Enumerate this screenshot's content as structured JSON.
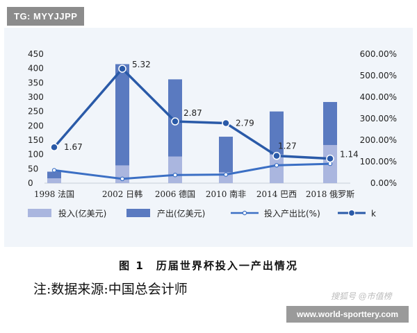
{
  "watermark_top": "TG: MYYJJPP",
  "caption": "图 1　历届世界杯投入一产出情况",
  "note": "注:数据来源:中国总会计师",
  "watermark_mid": "搜狐号 @市值榜",
  "watermark_bottom": "www.world-sporttery.com",
  "colors": {
    "input_bar": "#aab6df",
    "output_bar": "#5a7ac0",
    "ratio_line": "#3b6fc4",
    "k_line": "#2a5aa8",
    "panel_bg": "#f1f5fa",
    "text": "#222222"
  },
  "chart_data": {
    "type": "bar",
    "categories": [
      "1998 法国",
      "2002 日韩",
      "2006 德国",
      "2010 南非",
      "2014 巴西",
      "2018 俄罗斯"
    ],
    "yticks_left": [
      "0",
      "50",
      "100",
      "150",
      "200",
      "250",
      "300",
      "350",
      "400",
      "450"
    ],
    "ylim_left": [
      0,
      450
    ],
    "yticks_right": [
      "0.00%",
      "100.00%",
      "200.00%",
      "300.00%",
      "400.00%",
      "500.00%",
      "600.00%"
    ],
    "ylim_right": [
      0,
      600
    ],
    "series": [
      {
        "name": "投入(亿美元)",
        "kind": "bar",
        "values": [
          17,
          62,
          93,
          38,
          100,
          133
        ]
      },
      {
        "name": "产出(亿美元)",
        "kind": "bar",
        "values": [
          40,
          415,
          362,
          162,
          250,
          283
        ]
      },
      {
        "name": "投入产出比(%)",
        "kind": "line",
        "axis": "right",
        "values": [
          60,
          20,
          38,
          40,
          83,
          90
        ]
      },
      {
        "name": "k",
        "kind": "line",
        "axis": "left",
        "values": [
          1.67,
          5.32,
          2.87,
          2.79,
          1.27,
          1.14
        ],
        "labels": [
          "1.67",
          "5.32",
          "2.87",
          "2.79",
          "1.27",
          "1.14"
        ]
      }
    ],
    "legend_position": "bottom"
  }
}
